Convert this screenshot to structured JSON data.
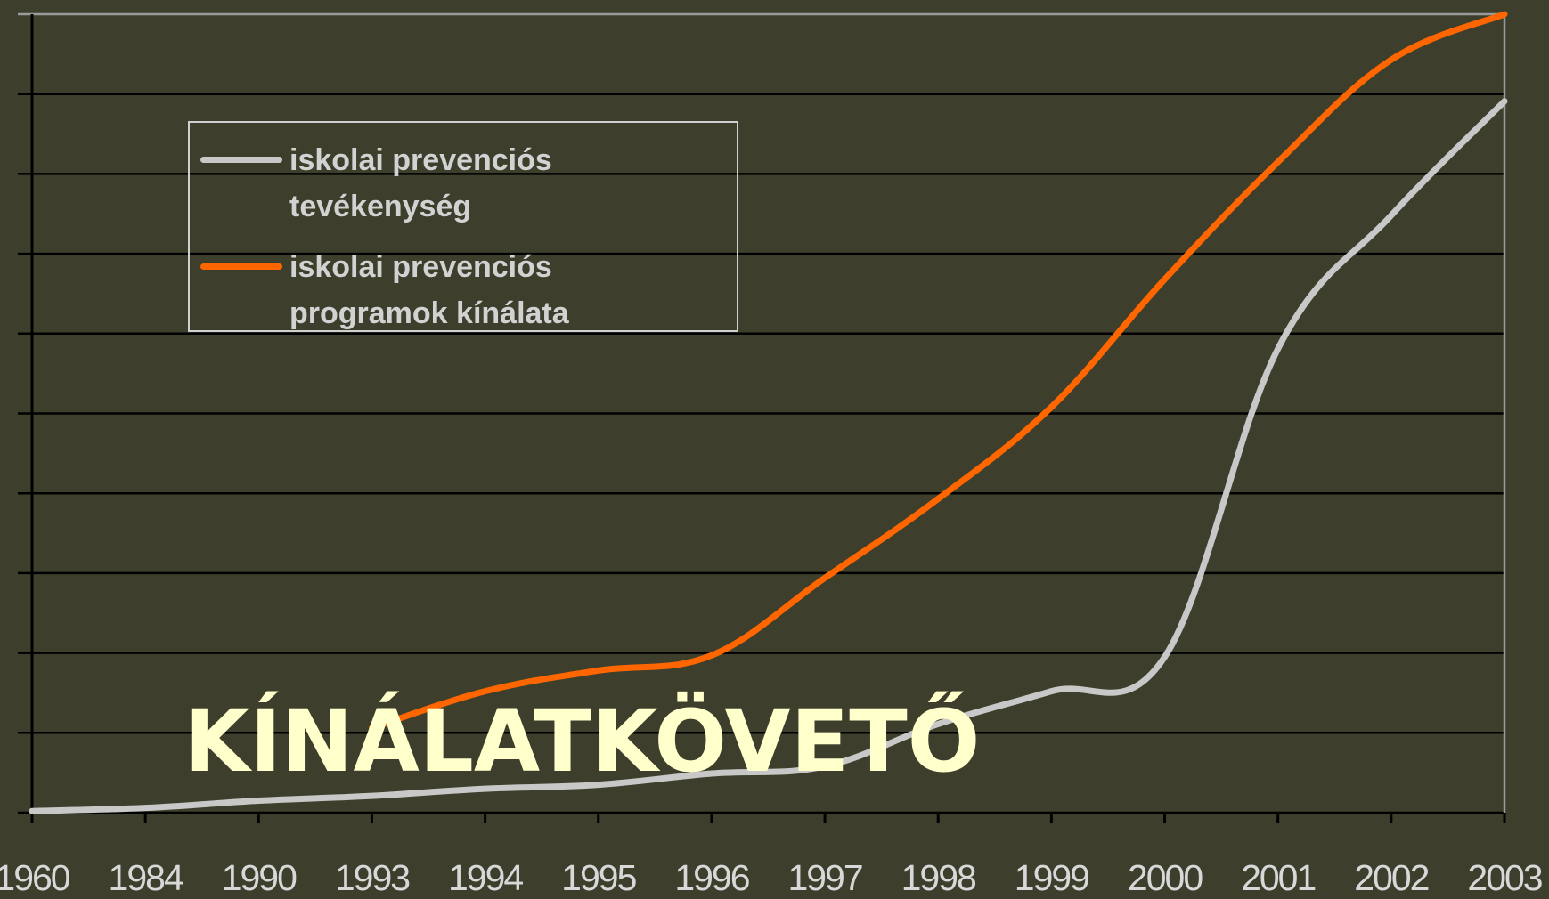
{
  "chart_data": {
    "type": "line",
    "categories": [
      "1960",
      "1984",
      "1990",
      "1993",
      "1994",
      "1995",
      "1996",
      "1997",
      "1998",
      "1999",
      "2000",
      "2001",
      "2002",
      "2003"
    ],
    "series": [
      {
        "name": "iskolai prevenciós tevékenység",
        "color": "#c8c8c8",
        "values": [
          0.02,
          0.06,
          0.15,
          0.21,
          0.3,
          0.35,
          0.49,
          0.58,
          1.11,
          1.52,
          1.95,
          5.81,
          7.48,
          8.91
        ]
      },
      {
        "name": "iskolai prevenciós programok kínálata",
        "color": "#ff6600",
        "values": [
          null,
          null,
          null,
          1.06,
          1.52,
          1.78,
          1.97,
          2.94,
          3.93,
          5.08,
          6.68,
          8.15,
          9.43,
          10
        ]
      }
    ],
    "ylim": [
      0,
      10
    ],
    "yticks": [
      0,
      1,
      2,
      3,
      4,
      5,
      6,
      7,
      8,
      9,
      10
    ],
    "grid": true,
    "annotation": "KÍNÁLATKÖVETŐ"
  }
}
